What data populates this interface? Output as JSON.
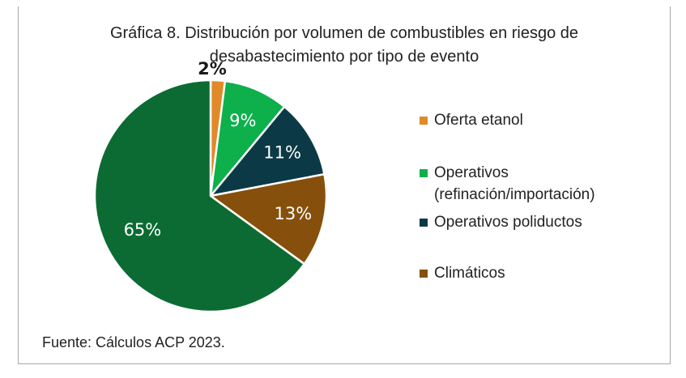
{
  "chart_data": {
    "type": "pie",
    "title": "Gráfica 8. Distribución por volumen de combustibles en riesgo de desabastecimiento por tipo de evento",
    "categories": [
      "Oferta etanol",
      "Operativos (refinación/importación)",
      "Operativos poliductos",
      "Climáticos",
      ""
    ],
    "values": [
      2,
      9,
      11,
      13,
      65
    ],
    "data_labels": [
      "2%",
      "9%",
      "11%",
      "13%",
      "65%"
    ],
    "colors": [
      "#e08a2a",
      "#0db04b",
      "#0b3a46",
      "#86500c",
      "#0b6b33"
    ],
    "legend_position": "right"
  },
  "legend": [
    {
      "label": "Oferta etanol",
      "color": "#e08a2a"
    },
    {
      "label": "Operativos (refinación/importación)",
      "color": "#0db04b"
    },
    {
      "label": "Operativos poliductos",
      "color": "#0b3a46"
    },
    {
      "label": "Climáticos",
      "color": "#86500c"
    }
  ],
  "source": "Fuente: Cálculos ACP 2023."
}
